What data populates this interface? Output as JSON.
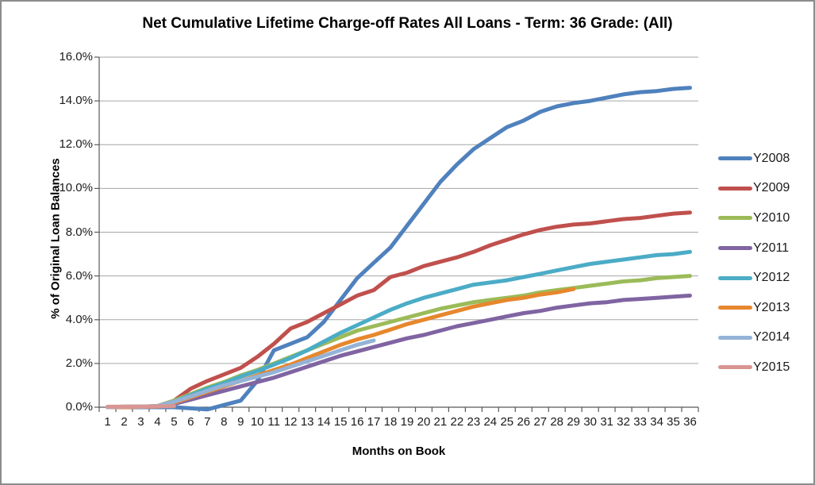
{
  "chart_data": {
    "type": "line",
    "title": "Net Cumulative Lifetime Charge-off Rates All Loans - Term: 36 Grade: (All)",
    "xlabel": "Months on Book",
    "ylabel": "% of Original Loan Balances",
    "grid": true,
    "legend_position": "right",
    "ylim": [
      0,
      16
    ],
    "y_tick_step": 2,
    "y_ticks": [
      "0.0%",
      "2.0%",
      "4.0%",
      "6.0%",
      "8.0%",
      "10.0%",
      "12.0%",
      "14.0%",
      "16.0%"
    ],
    "x": [
      1,
      2,
      3,
      4,
      5,
      6,
      7,
      8,
      9,
      10,
      11,
      12,
      13,
      14,
      15,
      16,
      17,
      18,
      19,
      20,
      21,
      22,
      23,
      24,
      25,
      26,
      27,
      28,
      29,
      30,
      31,
      32,
      33,
      34,
      35,
      36
    ],
    "x_ticks": [
      "1",
      "2",
      "3",
      "4",
      "5",
      "6",
      "7",
      "8",
      "9",
      "10",
      "11",
      "12",
      "13",
      "14",
      "15",
      "16",
      "17",
      "18",
      "19",
      "20",
      "21",
      "22",
      "23",
      "24",
      "25",
      "26",
      "27",
      "28",
      "29",
      "30",
      "31",
      "32",
      "33",
      "34",
      "35",
      "36"
    ],
    "axis_color": "#595959",
    "gridline_color": "#a6a6a6",
    "series": [
      {
        "name": "Y2008",
        "color": "#4F81BD",
        "values": [
          0.0,
          0.0,
          0.0,
          0.0,
          0.0,
          -0.05,
          -0.1,
          0.1,
          0.3,
          1.2,
          2.6,
          2.9,
          3.2,
          3.9,
          4.9,
          5.9,
          6.6,
          7.3,
          8.3,
          9.3,
          10.3,
          11.1,
          11.8,
          12.3,
          12.8,
          13.1,
          13.5,
          13.75,
          13.9,
          14.0,
          14.15,
          14.3,
          14.4,
          14.45,
          14.55,
          14.6
        ]
      },
      {
        "name": "Y2009",
        "color": "#C0504D",
        "values": [
          0.0,
          0.0,
          0.02,
          0.05,
          0.3,
          0.85,
          1.2,
          1.5,
          1.8,
          2.3,
          2.9,
          3.6,
          3.9,
          4.3,
          4.7,
          5.1,
          5.35,
          5.95,
          6.15,
          6.45,
          6.65,
          6.85,
          7.1,
          7.4,
          7.65,
          7.9,
          8.1,
          8.25,
          8.35,
          8.4,
          8.5,
          8.6,
          8.65,
          8.75,
          8.85,
          8.9
        ]
      },
      {
        "name": "Y2010",
        "color": "#9BBB59",
        "values": [
          0.0,
          0.02,
          0.03,
          0.05,
          0.3,
          0.6,
          0.9,
          1.15,
          1.45,
          1.7,
          2.0,
          2.3,
          2.6,
          2.9,
          3.2,
          3.5,
          3.7,
          3.9,
          4.1,
          4.3,
          4.5,
          4.65,
          4.8,
          4.9,
          5.0,
          5.1,
          5.25,
          5.35,
          5.45,
          5.55,
          5.65,
          5.75,
          5.8,
          5.9,
          5.95,
          6.0
        ]
      },
      {
        "name": "Y2011",
        "color": "#8064A2",
        "values": [
          0.0,
          0.0,
          0.02,
          0.03,
          0.15,
          0.35,
          0.55,
          0.75,
          0.95,
          1.15,
          1.35,
          1.6,
          1.85,
          2.1,
          2.35,
          2.55,
          2.75,
          2.95,
          3.15,
          3.3,
          3.5,
          3.7,
          3.85,
          4.0,
          4.15,
          4.3,
          4.4,
          4.55,
          4.65,
          4.75,
          4.8,
          4.9,
          4.95,
          5.0,
          5.05,
          5.1
        ]
      },
      {
        "name": "Y2012",
        "color": "#4BACC6",
        "values": [
          0.0,
          0.02,
          0.03,
          0.05,
          0.25,
          0.55,
          0.85,
          1.1,
          1.4,
          1.65,
          1.95,
          2.25,
          2.6,
          3.0,
          3.4,
          3.75,
          4.1,
          4.45,
          4.75,
          5.0,
          5.2,
          5.4,
          5.6,
          5.7,
          5.8,
          5.95,
          6.1,
          6.25,
          6.4,
          6.55,
          6.65,
          6.75,
          6.85,
          6.95,
          7.0,
          7.1
        ]
      },
      {
        "name": "Y2013",
        "color": "#E6872D",
        "values": [
          0.0,
          0.0,
          0.02,
          0.03,
          0.2,
          0.45,
          0.7,
          0.95,
          1.2,
          1.45,
          1.7,
          1.95,
          2.25,
          2.55,
          2.85,
          3.1,
          3.3,
          3.55,
          3.8,
          4.0,
          4.2,
          4.4,
          4.6,
          4.75,
          4.9,
          5.0,
          5.15,
          5.25,
          5.4
        ]
      },
      {
        "name": "Y2014",
        "color": "#95B3D7",
        "values": [
          0.0,
          0.02,
          0.03,
          0.05,
          0.25,
          0.5,
          0.75,
          1.0,
          1.2,
          1.4,
          1.6,
          1.85,
          2.1,
          2.35,
          2.6,
          2.85,
          3.05
        ]
      },
      {
        "name": "Y2015",
        "color": "#D99694",
        "values": [
          0.02,
          0.03,
          0.03,
          0.04,
          0.05
        ]
      }
    ]
  }
}
